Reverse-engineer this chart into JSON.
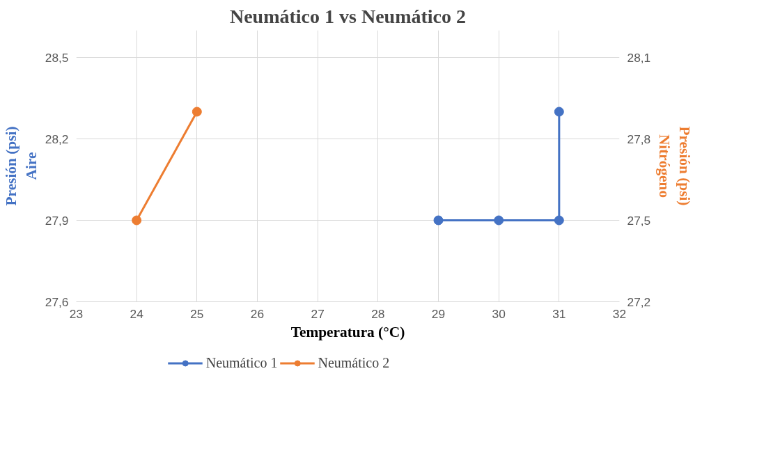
{
  "chart_data": {
    "type": "line",
    "title": "Neumático 1 vs Neumático 2",
    "xlabel": "Temperatura (°C)",
    "ylabel": "Presión (psi)\nAire",
    "y2label": "Presión (psi)\nNitrógeno",
    "series": [
      {
        "name": "Neumático 1",
        "color": "#4472c4",
        "x": [
          29,
          30,
          31,
          31
        ],
        "values": [
          27.9,
          27.9,
          27.9,
          28.3
        ]
      },
      {
        "name": "Neumático 2",
        "color": "#ed7d31",
        "x": [
          24,
          25
        ],
        "values": [
          27.5,
          27.9
        ],
        "axis": "y2"
      }
    ],
    "xlim": [
      23,
      32
    ],
    "xticks": [
      23,
      24,
      25,
      26,
      27,
      28,
      29,
      30,
      31,
      32
    ],
    "ylim": [
      27.6,
      28.6
    ],
    "yticks": [
      {
        "value": 27.6,
        "label": "27,6"
      },
      {
        "value": 27.9,
        "label": "27,9"
      },
      {
        "value": 28.2,
        "label": "28,2"
      },
      {
        "value": 28.5,
        "label": "28,5"
      }
    ],
    "y2lim": [
      27.2,
      28.2
    ],
    "y2ticks": [
      {
        "value": 27.2,
        "label": "27,2"
      },
      {
        "value": 27.5,
        "label": "27,5"
      },
      {
        "value": 27.8,
        "label": "27,8"
      },
      {
        "value": 28.1,
        "label": "28,1"
      }
    ],
    "grid": true,
    "legend": "bottom",
    "marker": "circle",
    "line_style": "solid"
  }
}
